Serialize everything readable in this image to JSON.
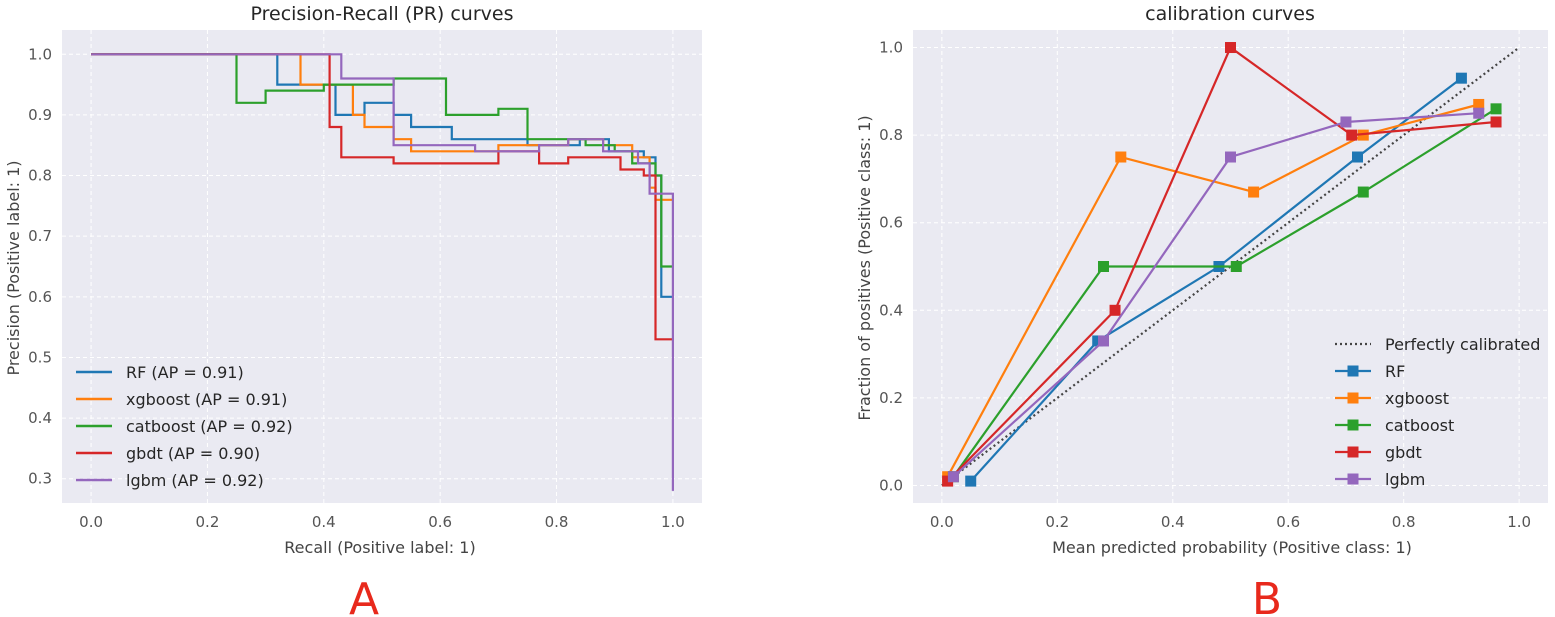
{
  "colors": {
    "RF": "#1f77b4",
    "xgboost": "#ff7f0e",
    "catboost": "#2ca02c",
    "gbdt": "#d62728",
    "lgbm": "#9467bd",
    "perfect": "#444444",
    "panel_bg": "#eaeaf2",
    "grid": "#ffffff",
    "letter": "#e8291c"
  },
  "panel_labels": [
    "A",
    "B"
  ],
  "chart_data": [
    {
      "type": "line",
      "step": true,
      "title": "Precision-Recall (PR) curves",
      "xlabel": "Recall (Positive label: 1)",
      "ylabel": "Precision (Positive label: 1)",
      "xlim": [
        -0.05,
        1.05
      ],
      "ylim": [
        0.26,
        1.04
      ],
      "xticks": [
        0.0,
        0.2,
        0.4,
        0.6,
        0.8,
        1.0
      ],
      "xtick_labels": [
        "0.0",
        "0.2",
        "0.4",
        "0.6",
        "0.8",
        "1.0"
      ],
      "yticks": [
        0.3,
        0.4,
        0.5,
        0.6,
        0.7,
        0.8,
        0.9,
        1.0
      ],
      "ytick_labels": [
        "0.3",
        "0.4",
        "0.5",
        "0.6",
        "0.7",
        "0.8",
        "0.9",
        "1.0"
      ],
      "legend_position": "lower-left",
      "series": [
        {
          "name": "RF",
          "legend": "RF (AP = 0.91)",
          "x": [
            0.0,
            0.32,
            0.32,
            0.42,
            0.42,
            0.47,
            0.47,
            0.52,
            0.52,
            0.55,
            0.55,
            0.62,
            0.62,
            0.75,
            0.75,
            0.84,
            0.84,
            0.89,
            0.89,
            0.95,
            0.95,
            0.97,
            0.97,
            0.98,
            0.98,
            1.0
          ],
          "y": [
            1.0,
            1.0,
            0.95,
            0.95,
            0.9,
            0.9,
            0.92,
            0.92,
            0.9,
            0.9,
            0.88,
            0.88,
            0.86,
            0.86,
            0.85,
            0.85,
            0.86,
            0.86,
            0.84,
            0.84,
            0.83,
            0.83,
            0.8,
            0.8,
            0.6,
            0.6
          ]
        },
        {
          "name": "xgboost",
          "legend": "xgboost (AP = 0.91)",
          "x": [
            0.0,
            0.36,
            0.36,
            0.45,
            0.45,
            0.47,
            0.47,
            0.52,
            0.52,
            0.55,
            0.55,
            0.7,
            0.7,
            0.82,
            0.82,
            0.88,
            0.88,
            0.93,
            0.93,
            0.96,
            0.96,
            0.97,
            0.97,
            0.98,
            0.98,
            1.0
          ],
          "y": [
            1.0,
            1.0,
            0.95,
            0.95,
            0.9,
            0.9,
            0.88,
            0.88,
            0.86,
            0.86,
            0.84,
            0.84,
            0.85,
            0.85,
            0.86,
            0.86,
            0.85,
            0.85,
            0.83,
            0.83,
            0.78,
            0.78,
            0.76,
            0.76,
            0.76,
            0.76
          ]
        },
        {
          "name": "catboost",
          "legend": "catboost (AP = 0.92)",
          "x": [
            0.0,
            0.25,
            0.25,
            0.3,
            0.3,
            0.4,
            0.4,
            0.52,
            0.52,
            0.61,
            0.61,
            0.7,
            0.7,
            0.75,
            0.75,
            0.85,
            0.85,
            0.9,
            0.9,
            0.93,
            0.93,
            0.97,
            0.97,
            0.98,
            0.98,
            1.0
          ],
          "y": [
            1.0,
            1.0,
            0.92,
            0.92,
            0.94,
            0.94,
            0.95,
            0.95,
            0.96,
            0.96,
            0.9,
            0.9,
            0.91,
            0.91,
            0.86,
            0.86,
            0.85,
            0.85,
            0.84,
            0.84,
            0.82,
            0.82,
            0.8,
            0.8,
            0.65,
            0.65
          ]
        },
        {
          "name": "gbdt",
          "legend": "gbdt (AP = 0.90)",
          "x": [
            0.0,
            0.41,
            0.41,
            0.43,
            0.43,
            0.52,
            0.52,
            0.7,
            0.7,
            0.77,
            0.77,
            0.82,
            0.82,
            0.91,
            0.91,
            0.95,
            0.95,
            0.97,
            0.97,
            0.98,
            0.98,
            1.0
          ],
          "y": [
            1.0,
            1.0,
            0.88,
            0.88,
            0.83,
            0.83,
            0.82,
            0.82,
            0.84,
            0.84,
            0.82,
            0.82,
            0.83,
            0.83,
            0.81,
            0.81,
            0.8,
            0.8,
            0.53,
            0.53,
            0.53,
            0.53
          ]
        },
        {
          "name": "lgbm",
          "legend": "lgbm (AP = 0.92)",
          "x": [
            0.0,
            0.43,
            0.43,
            0.52,
            0.52,
            0.66,
            0.66,
            0.77,
            0.77,
            0.82,
            0.82,
            0.88,
            0.88,
            0.94,
            0.94,
            0.96,
            0.96,
            0.99,
            0.99,
            1.0,
            1.0
          ],
          "y": [
            1.0,
            1.0,
            0.96,
            0.96,
            0.85,
            0.85,
            0.84,
            0.84,
            0.85,
            0.85,
            0.86,
            0.86,
            0.84,
            0.84,
            0.82,
            0.82,
            0.77,
            0.77,
            0.77,
            0.77,
            0.28
          ]
        }
      ]
    },
    {
      "type": "line",
      "markers": "square",
      "title": "calibration curves",
      "xlabel": "Mean predicted probability (Positive class: 1)",
      "ylabel": "Fraction of positives (Positive class: 1)",
      "xlim": [
        -0.05,
        1.05
      ],
      "ylim": [
        -0.04,
        1.04
      ],
      "xticks": [
        0.0,
        0.2,
        0.4,
        0.6,
        0.8,
        1.0
      ],
      "xtick_labels": [
        "0.0",
        "0.2",
        "0.4",
        "0.6",
        "0.8",
        "1.0"
      ],
      "yticks": [
        0.0,
        0.2,
        0.4,
        0.6,
        0.8,
        1.0
      ],
      "ytick_labels": [
        "0.0",
        "0.2",
        "0.4",
        "0.6",
        "0.8",
        "1.0"
      ],
      "legend_position": "lower-right",
      "reference": {
        "name": "Perfectly calibrated",
        "x": [
          0,
          1
        ],
        "y": [
          0,
          1
        ]
      },
      "series": [
        {
          "name": "RF",
          "legend": "RF",
          "x": [
            0.05,
            0.27,
            0.48,
            0.72,
            0.9
          ],
          "y": [
            0.01,
            0.33,
            0.5,
            0.75,
            0.93
          ]
        },
        {
          "name": "xgboost",
          "legend": "xgboost",
          "x": [
            0.01,
            0.31,
            0.54,
            0.73,
            0.93
          ],
          "y": [
            0.02,
            0.75,
            0.67,
            0.8,
            0.87
          ]
        },
        {
          "name": "catboost",
          "legend": "catboost",
          "x": [
            0.02,
            0.28,
            0.51,
            0.73,
            0.96
          ],
          "y": [
            0.02,
            0.5,
            0.5,
            0.67,
            0.86
          ]
        },
        {
          "name": "gbdt",
          "legend": "gbdt",
          "x": [
            0.01,
            0.3,
            0.5,
            0.71,
            0.96
          ],
          "y": [
            0.01,
            0.4,
            1.0,
            0.8,
            0.83
          ]
        },
        {
          "name": "lgbm",
          "legend": "lgbm",
          "x": [
            0.02,
            0.28,
            0.5,
            0.7,
            0.93
          ],
          "y": [
            0.02,
            0.33,
            0.75,
            0.83,
            0.85
          ]
        }
      ]
    }
  ]
}
